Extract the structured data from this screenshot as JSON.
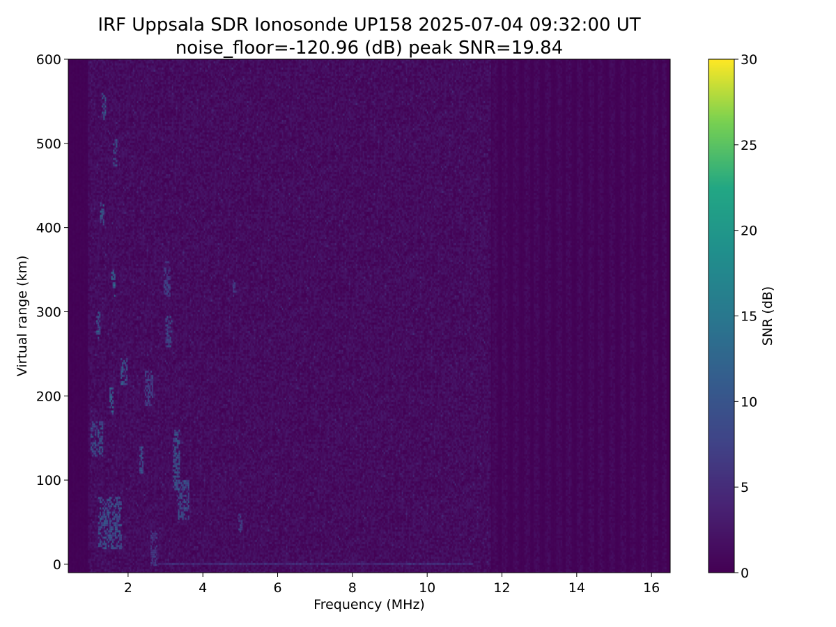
{
  "chart_data": {
    "type": "heatmap",
    "title": "IRF Uppsala SDR Ionosonde UP158 2025-07-04 09:32:00  UT",
    "subtitle": "noise_floor=-120.96 (dB) peak SNR=19.84",
    "xlabel": "Frequency (MHz)",
    "ylabel": "Virtual range (km)",
    "xlim": [
      0.4,
      16.5
    ],
    "ylim": [
      -10,
      600
    ],
    "x_ticks": [
      2,
      4,
      6,
      8,
      10,
      12,
      14,
      16
    ],
    "y_ticks": [
      0,
      100,
      200,
      300,
      400,
      500,
      600
    ],
    "data_x_range": [
      0.45,
      16.4
    ],
    "colorbar": {
      "label": "SNR (dB)",
      "range": [
        0,
        30
      ],
      "ticks": [
        0,
        5,
        10,
        15,
        20,
        25,
        30
      ],
      "colormap": "viridis"
    },
    "noise_level_db": [
      0,
      3
    ],
    "traces": [
      {
        "freq": [
          1.2,
          1.8
        ],
        "range": [
          20,
          80
        ],
        "snr": 12
      },
      {
        "freq": [
          1.0,
          1.3
        ],
        "range": [
          130,
          170
        ],
        "snr": 12
      },
      {
        "freq": [
          1.5,
          1.6
        ],
        "range": [
          180,
          210
        ],
        "snr": 14
      },
      {
        "freq": [
          1.8,
          1.95
        ],
        "range": [
          215,
          245
        ],
        "snr": 13
      },
      {
        "freq": [
          1.15,
          1.25
        ],
        "range": [
          270,
          300
        ],
        "snr": 14
      },
      {
        "freq": [
          1.55,
          1.65
        ],
        "range": [
          320,
          350
        ],
        "snr": 16
      },
      {
        "freq": [
          1.25,
          1.35
        ],
        "range": [
          405,
          430
        ],
        "snr": 14
      },
      {
        "freq": [
          1.3,
          1.4
        ],
        "range": [
          530,
          560
        ],
        "snr": 13
      },
      {
        "freq": [
          1.6,
          1.7
        ],
        "range": [
          475,
          505
        ],
        "snr": 12
      },
      {
        "freq": [
          2.3,
          2.4
        ],
        "range": [
          110,
          140
        ],
        "snr": 11
      },
      {
        "freq": [
          2.45,
          2.65
        ],
        "range": [
          190,
          230
        ],
        "snr": 9
      },
      {
        "freq": [
          3.0,
          3.15
        ],
        "range": [
          260,
          295
        ],
        "snr": 11
      },
      {
        "freq": [
          2.95,
          3.1
        ],
        "range": [
          320,
          360
        ],
        "snr": 9
      },
      {
        "freq": [
          3.2,
          3.35
        ],
        "range": [
          90,
          160
        ],
        "snr": 14
      },
      {
        "freq": [
          3.3,
          3.6
        ],
        "range": [
          55,
          100
        ],
        "snr": 12
      },
      {
        "freq": [
          4.8,
          4.9
        ],
        "range": [
          320,
          340
        ],
        "snr": 8
      },
      {
        "freq": [
          4.95,
          5.05
        ],
        "range": [
          40,
          60
        ],
        "snr": 9
      },
      {
        "freq": [
          2.6,
          2.75
        ],
        "range": [
          0,
          40
        ],
        "snr": 8
      }
    ]
  }
}
